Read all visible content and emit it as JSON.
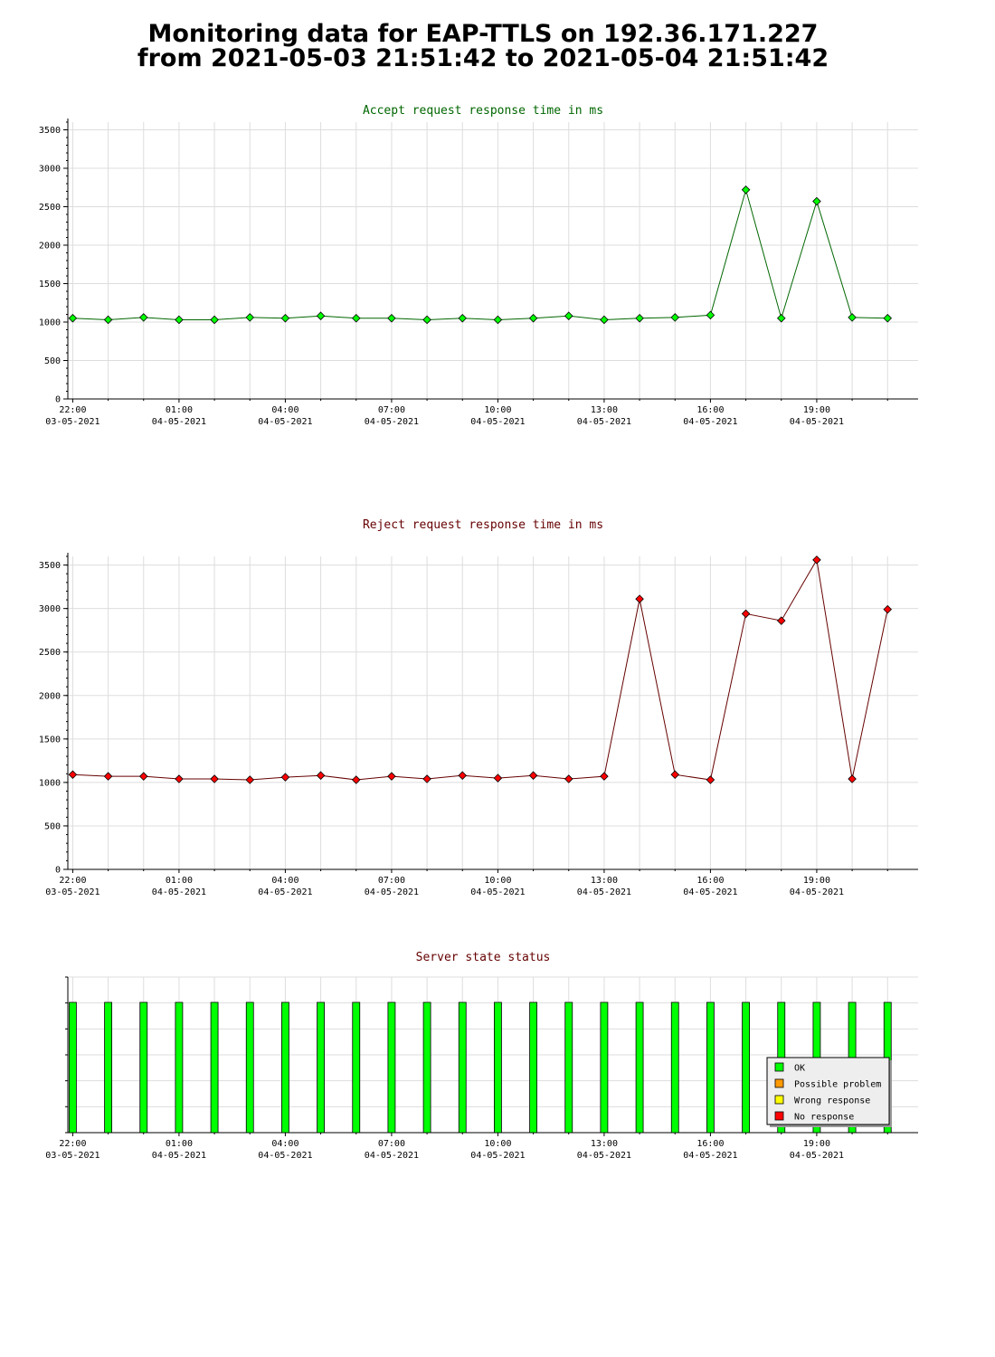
{
  "page": {
    "title_line1": "Monitoring data for EAP-TTLS on 192.36.171.227",
    "title_line2": "from 2021-05-03 21:51:42 to 2021-05-04 21:51:42"
  },
  "x_axis_ticks": [
    {
      "time": "22:00",
      "date": "03-05-2021"
    },
    {
      "time": "01:00",
      "date": "04-05-2021"
    },
    {
      "time": "04:00",
      "date": "04-05-2021"
    },
    {
      "time": "07:00",
      "date": "04-05-2021"
    },
    {
      "time": "10:00",
      "date": "04-05-2021"
    },
    {
      "time": "13:00",
      "date": "04-05-2021"
    },
    {
      "time": "16:00",
      "date": "04-05-2021"
    },
    {
      "time": "19:00",
      "date": "04-05-2021"
    }
  ],
  "chart_data": [
    {
      "type": "line",
      "title": "Accept request response time in ms",
      "title_color": "#006600",
      "line_color": "#006600",
      "marker_color": "#00ff00",
      "ylim": [
        0,
        3600
      ],
      "yticks": [
        0,
        500,
        1000,
        1500,
        2000,
        2500,
        3000,
        3500
      ],
      "grid": true,
      "x": [
        "2021-05-03 22:00",
        "2021-05-03 23:00",
        "2021-05-04 00:00",
        "2021-05-04 01:00",
        "2021-05-04 02:00",
        "2021-05-04 03:00",
        "2021-05-04 04:00",
        "2021-05-04 05:00",
        "2021-05-04 06:00",
        "2021-05-04 07:00",
        "2021-05-04 08:00",
        "2021-05-04 09:00",
        "2021-05-04 10:00",
        "2021-05-04 11:00",
        "2021-05-04 12:00",
        "2021-05-04 13:00",
        "2021-05-04 14:00",
        "2021-05-04 15:00",
        "2021-05-04 16:00",
        "2021-05-04 17:00",
        "2021-05-04 18:00",
        "2021-05-04 19:00",
        "2021-05-04 20:00",
        "2021-05-04 21:00"
      ],
      "values": [
        1050,
        1030,
        1060,
        1030,
        1030,
        1060,
        1050,
        1080,
        1050,
        1050,
        1030,
        1050,
        1030,
        1050,
        1080,
        1030,
        1050,
        1060,
        1090,
        2720,
        1050,
        2570,
        1060,
        1050
      ]
    },
    {
      "type": "line",
      "title": "Reject request response time in ms",
      "title_color": "#660000",
      "line_color": "#660000",
      "marker_color": "#ff0000",
      "ylim": [
        0,
        3600
      ],
      "yticks": [
        0,
        500,
        1000,
        1500,
        2000,
        2500,
        3000,
        3500
      ],
      "grid": true,
      "x": [
        "2021-05-03 22:00",
        "2021-05-03 23:00",
        "2021-05-04 00:00",
        "2021-05-04 01:00",
        "2021-05-04 02:00",
        "2021-05-04 03:00",
        "2021-05-04 04:00",
        "2021-05-04 05:00",
        "2021-05-04 06:00",
        "2021-05-04 07:00",
        "2021-05-04 08:00",
        "2021-05-04 09:00",
        "2021-05-04 10:00",
        "2021-05-04 11:00",
        "2021-05-04 12:00",
        "2021-05-04 13:00",
        "2021-05-04 14:00",
        "2021-05-04 15:00",
        "2021-05-04 16:00",
        "2021-05-04 17:00",
        "2021-05-04 18:00",
        "2021-05-04 19:00",
        "2021-05-04 20:00",
        "2021-05-04 21:00"
      ],
      "values": [
        1090,
        1070,
        1070,
        1040,
        1040,
        1030,
        1060,
        1080,
        1030,
        1070,
        1040,
        1080,
        1050,
        1080,
        1040,
        1070,
        3110,
        1090,
        1030,
        2940,
        2860,
        3560,
        1040,
        2990
      ]
    },
    {
      "type": "bar",
      "title": "Server state status",
      "title_color": "#660000",
      "grid": true,
      "x": [
        "2021-05-03 22:00",
        "2021-05-03 23:00",
        "2021-05-04 00:00",
        "2021-05-04 01:00",
        "2021-05-04 02:00",
        "2021-05-04 03:00",
        "2021-05-04 04:00",
        "2021-05-04 05:00",
        "2021-05-04 06:00",
        "2021-05-04 07:00",
        "2021-05-04 08:00",
        "2021-05-04 09:00",
        "2021-05-04 10:00",
        "2021-05-04 11:00",
        "2021-05-04 12:00",
        "2021-05-04 13:00",
        "2021-05-04 14:00",
        "2021-05-04 15:00",
        "2021-05-04 16:00",
        "2021-05-04 17:00",
        "2021-05-04 18:00",
        "2021-05-04 19:00",
        "2021-05-04 20:00",
        "2021-05-04 21:00"
      ],
      "states": [
        "OK",
        "OK",
        "OK",
        "OK",
        "OK",
        "OK",
        "OK",
        "OK",
        "OK",
        "OK",
        "OK",
        "OK",
        "OK",
        "OK",
        "OK",
        "OK",
        "OK",
        "OK",
        "OK",
        "OK",
        "OK",
        "OK",
        "OK",
        "OK"
      ],
      "legend_placement": "bottom-right",
      "legend": [
        {
          "label": "OK",
          "color": "#00ff00"
        },
        {
          "label": "Possible problem",
          "color": "#ff9900"
        },
        {
          "label": "Wrong response",
          "color": "#ffff00"
        },
        {
          "label": "No response",
          "color": "#ff0000"
        }
      ]
    }
  ]
}
